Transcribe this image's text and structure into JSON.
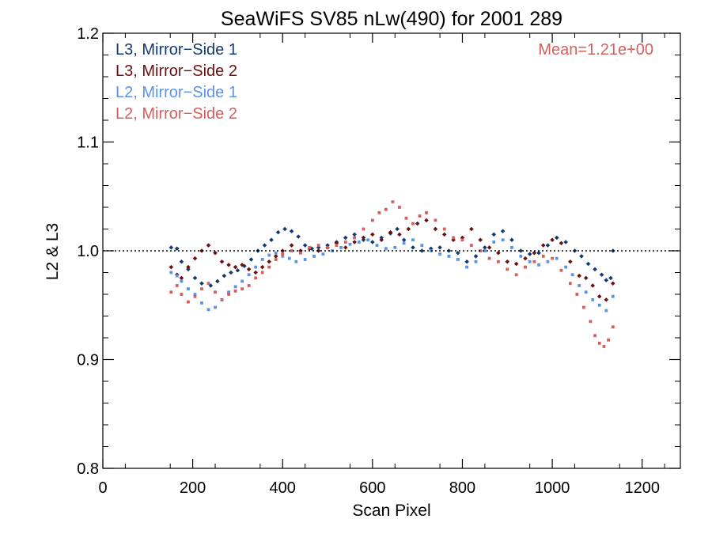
{
  "chart_data": {
    "type": "scatter",
    "title": "SeaWiFS SV85 nLw(490) for 2001 289",
    "xlabel": "Scan Pixel",
    "ylabel": "L2 & L3",
    "xlim": [
      0,
      1285
    ],
    "ylim": [
      0.8,
      1.2
    ],
    "x_ticks": [
      0,
      200,
      400,
      600,
      800,
      1000,
      1200
    ],
    "x_tick_labels": [
      "0",
      "200",
      "400",
      "600",
      "800",
      "1000",
      "1200"
    ],
    "y_ticks": [
      0.8,
      0.9,
      1.0,
      1.1,
      1.2
    ],
    "y_tick_labels": [
      "0.8",
      "0.9",
      "1.0",
      "1.1",
      "1.2"
    ],
    "reference_line": 1.0,
    "annotation": "Mean=1.21e+00",
    "annotation_color": "#d45f5f",
    "legend_position": "top-left",
    "series": [
      {
        "name": "L3, Mirror−Side 1",
        "color": "#123a72",
        "marker": "diamond",
        "points": [
          [
            152,
            1.003
          ],
          [
            165,
            1.002
          ],
          [
            175,
            0.99
          ],
          [
            190,
            0.983
          ],
          [
            205,
            0.975
          ],
          [
            220,
            0.97
          ],
          [
            240,
            0.968
          ],
          [
            255,
            0.972
          ],
          [
            270,
            0.977
          ],
          [
            285,
            0.98
          ],
          [
            300,
            0.982
          ],
          [
            315,
            0.986
          ],
          [
            330,
            0.992
          ],
          [
            345,
            1.0
          ],
          [
            360,
            1.005
          ],
          [
            375,
            1.01
          ],
          [
            390,
            1.017
          ],
          [
            405,
            1.02
          ],
          [
            420,
            1.018
          ],
          [
            435,
            1.013
          ],
          [
            450,
            1.005
          ],
          [
            465,
            1.002
          ],
          [
            480,
            1.003
          ],
          [
            500,
            1.005
          ],
          [
            520,
            1.008
          ],
          [
            540,
            1.012
          ],
          [
            560,
            1.015
          ],
          [
            580,
            1.01
          ],
          [
            600,
            1.008
          ],
          [
            620,
            1.012
          ],
          [
            640,
            1.016
          ],
          [
            655,
            1.02
          ],
          [
            670,
            1.01
          ],
          [
            690,
            1.003
          ],
          [
            710,
            1.0
          ],
          [
            730,
            1.002
          ],
          [
            750,
            1.003
          ],
          [
            770,
            1.0
          ],
          [
            790,
            0.998
          ],
          [
            810,
            0.99
          ],
          [
            830,
            0.995
          ],
          [
            850,
            1.003
          ],
          [
            870,
            1.015
          ],
          [
            890,
            1.018
          ],
          [
            910,
            1.01
          ],
          [
            930,
            1.0
          ],
          [
            950,
            0.997
          ],
          [
            970,
            0.998
          ],
          [
            990,
            1.005
          ],
          [
            1010,
            1.012
          ],
          [
            1030,
            1.008
          ],
          [
            1050,
            1.0
          ],
          [
            1065,
            0.995
          ],
          [
            1080,
            0.988
          ],
          [
            1095,
            0.983
          ],
          [
            1110,
            0.978
          ],
          [
            1120,
            0.973
          ],
          [
            1130,
            0.975
          ],
          [
            1135,
            1.0
          ]
        ]
      },
      {
        "name": "L3, Mirror−Side 2",
        "color": "#6b1010",
        "marker": "diamond",
        "points": [
          [
            152,
            0.985
          ],
          [
            165,
            0.978
          ],
          [
            175,
            0.975
          ],
          [
            190,
            0.985
          ],
          [
            205,
            0.993
          ],
          [
            220,
            1.0
          ],
          [
            235,
            1.005
          ],
          [
            250,
            0.998
          ],
          [
            265,
            0.99
          ],
          [
            280,
            0.987
          ],
          [
            295,
            0.985
          ],
          [
            310,
            0.987
          ],
          [
            325,
            0.983
          ],
          [
            340,
            0.98
          ],
          [
            355,
            0.985
          ],
          [
            370,
            0.99
          ],
          [
            385,
            0.995
          ],
          [
            400,
            1.0
          ],
          [
            420,
            1.005
          ],
          [
            440,
            1.0
          ],
          [
            460,
            1.002
          ],
          [
            480,
            1.0
          ],
          [
            500,
            1.003
          ],
          [
            520,
            1.007
          ],
          [
            540,
            1.003
          ],
          [
            560,
            1.008
          ],
          [
            580,
            1.012
          ],
          [
            600,
            1.015
          ],
          [
            620,
            1.01
          ],
          [
            640,
            1.017
          ],
          [
            660,
            1.015
          ],
          [
            680,
            1.02
          ],
          [
            700,
            1.025
          ],
          [
            720,
            1.028
          ],
          [
            740,
            1.02
          ],
          [
            760,
            1.015
          ],
          [
            780,
            1.01
          ],
          [
            800,
            1.012
          ],
          [
            820,
            1.02
          ],
          [
            840,
            1.01
          ],
          [
            860,
            1.003
          ],
          [
            880,
            0.998
          ],
          [
            900,
            0.99
          ],
          [
            920,
            0.988
          ],
          [
            940,
            0.993
          ],
          [
            960,
            0.998
          ],
          [
            980,
            1.005
          ],
          [
            1000,
            1.01
          ],
          [
            1020,
            1.007
          ],
          [
            1040,
            0.99
          ],
          [
            1060,
            0.977
          ],
          [
            1075,
            0.975
          ],
          [
            1090,
            0.968
          ],
          [
            1105,
            0.958
          ],
          [
            1120,
            0.955
          ],
          [
            1135,
            0.97
          ]
        ]
      },
      {
        "name": "L2, Mirror−Side 1",
        "color": "#5b93e6",
        "marker": "square",
        "points": [
          [
            152,
            0.98
          ],
          [
            165,
            0.977
          ],
          [
            175,
            0.972
          ],
          [
            190,
            0.965
          ],
          [
            205,
            0.96
          ],
          [
            220,
            0.952
          ],
          [
            235,
            0.946
          ],
          [
            250,
            0.948
          ],
          [
            265,
            0.955
          ],
          [
            280,
            0.962
          ],
          [
            295,
            0.967
          ],
          [
            310,
            0.972
          ],
          [
            325,
            0.978
          ],
          [
            340,
            0.985
          ],
          [
            355,
            0.992
          ],
          [
            370,
            0.996
          ],
          [
            385,
            0.998
          ],
          [
            400,
            0.995
          ],
          [
            415,
            0.993
          ],
          [
            430,
            0.99
          ],
          [
            450,
            0.992
          ],
          [
            470,
            0.995
          ],
          [
            490,
            0.997
          ],
          [
            510,
            1.0
          ],
          [
            530,
            1.003
          ],
          [
            550,
            1.006
          ],
          [
            570,
            1.008
          ],
          [
            590,
            1.01
          ],
          [
            610,
            1.005
          ],
          [
            630,
            1.002
          ],
          [
            650,
            1.003
          ],
          [
            670,
            1.007
          ],
          [
            690,
            1.01
          ],
          [
            710,
            1.005
          ],
          [
            730,
            1.0
          ],
          [
            750,
            0.997
          ],
          [
            770,
            0.995
          ],
          [
            790,
            0.992
          ],
          [
            810,
            0.985
          ],
          [
            830,
            0.99
          ],
          [
            850,
            1.0
          ],
          [
            870,
            1.008
          ],
          [
            890,
            1.01
          ],
          [
            910,
            1.003
          ],
          [
            930,
            0.995
          ],
          [
            950,
            0.99
          ],
          [
            970,
            0.987
          ],
          [
            990,
            0.99
          ],
          [
            1010,
            0.993
          ],
          [
            1030,
            0.985
          ],
          [
            1045,
            0.978
          ],
          [
            1060,
            0.968
          ],
          [
            1075,
            0.962
          ],
          [
            1090,
            0.955
          ],
          [
            1105,
            0.95
          ],
          [
            1120,
            0.945
          ],
          [
            1135,
            0.958
          ]
        ]
      },
      {
        "name": "L2, Mirror−Side 2",
        "color": "#d45f5f",
        "marker": "square",
        "points": [
          [
            152,
            0.962
          ],
          [
            165,
            0.968
          ],
          [
            175,
            0.96
          ],
          [
            190,
            0.953
          ],
          [
            205,
            0.958
          ],
          [
            220,
            0.965
          ],
          [
            235,
            0.97
          ],
          [
            250,
            0.962
          ],
          [
            265,
            0.955
          ],
          [
            280,
            0.96
          ],
          [
            295,
            0.963
          ],
          [
            310,
            0.965
          ],
          [
            325,
            0.968
          ],
          [
            340,
            0.975
          ],
          [
            355,
            0.98
          ],
          [
            370,
            0.985
          ],
          [
            385,
            0.992
          ],
          [
            400,
            0.997
          ],
          [
            420,
            1.0
          ],
          [
            440,
            0.998
          ],
          [
            460,
            1.003
          ],
          [
            480,
            1.005
          ],
          [
            500,
            1.003
          ],
          [
            520,
            1.005
          ],
          [
            540,
            1.008
          ],
          [
            560,
            1.012
          ],
          [
            580,
            1.02
          ],
          [
            600,
            1.028
          ],
          [
            615,
            1.035
          ],
          [
            630,
            1.038
          ],
          [
            645,
            1.045
          ],
          [
            660,
            1.04
          ],
          [
            675,
            1.03
          ],
          [
            690,
            1.025
          ],
          [
            705,
            1.032
          ],
          [
            720,
            1.035
          ],
          [
            740,
            1.028
          ],
          [
            760,
            1.02
          ],
          [
            780,
            1.012
          ],
          [
            800,
            1.01
          ],
          [
            820,
            1.005
          ],
          [
            840,
            1.0
          ],
          [
            860,
            0.993
          ],
          [
            880,
            0.99
          ],
          [
            900,
            0.983
          ],
          [
            920,
            0.978
          ],
          [
            940,
            0.985
          ],
          [
            960,
            0.99
          ],
          [
            980,
            0.995
          ],
          [
            1000,
            0.993
          ],
          [
            1020,
            0.982
          ],
          [
            1040,
            0.97
          ],
          [
            1055,
            0.96
          ],
          [
            1070,
            0.948
          ],
          [
            1085,
            0.935
          ],
          [
            1095,
            0.922
          ],
          [
            1105,
            0.915
          ],
          [
            1115,
            0.912
          ],
          [
            1125,
            0.918
          ],
          [
            1135,
            0.93
          ]
        ]
      }
    ]
  }
}
